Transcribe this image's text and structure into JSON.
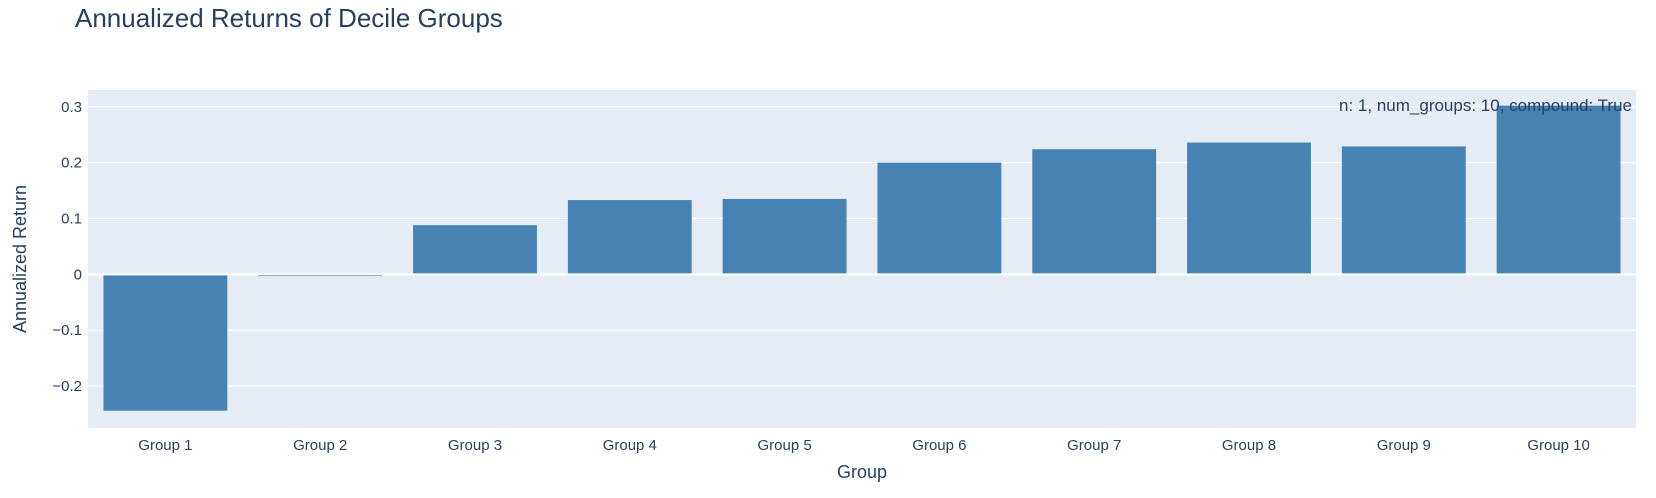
{
  "chart_data": {
    "type": "bar",
    "title": "Annualized Returns of Decile Groups",
    "xlabel": "Group",
    "ylabel": "Annualized Return",
    "categories": [
      "Group 1",
      "Group 2",
      "Group 3",
      "Group 4",
      "Group 5",
      "Group 6",
      "Group 7",
      "Group 8",
      "Group 9",
      "Group 10"
    ],
    "values": [
      -0.244,
      -0.003,
      0.088,
      0.133,
      0.135,
      0.2,
      0.224,
      0.236,
      0.229,
      0.302
    ],
    "ylim": [
      -0.275,
      0.33
    ],
    "yticks": [
      -0.2,
      -0.1,
      0,
      0.1,
      0.2,
      0.3
    ],
    "ytick_labels": [
      "−0.2",
      "−0.1",
      "0",
      "0.1",
      "0.2",
      "0.3"
    ],
    "annotation": "n: 1, num_groups: 10, compound: True",
    "bar_color": "#4682b4",
    "plot_background": "#e5ecf6",
    "grid": true
  }
}
